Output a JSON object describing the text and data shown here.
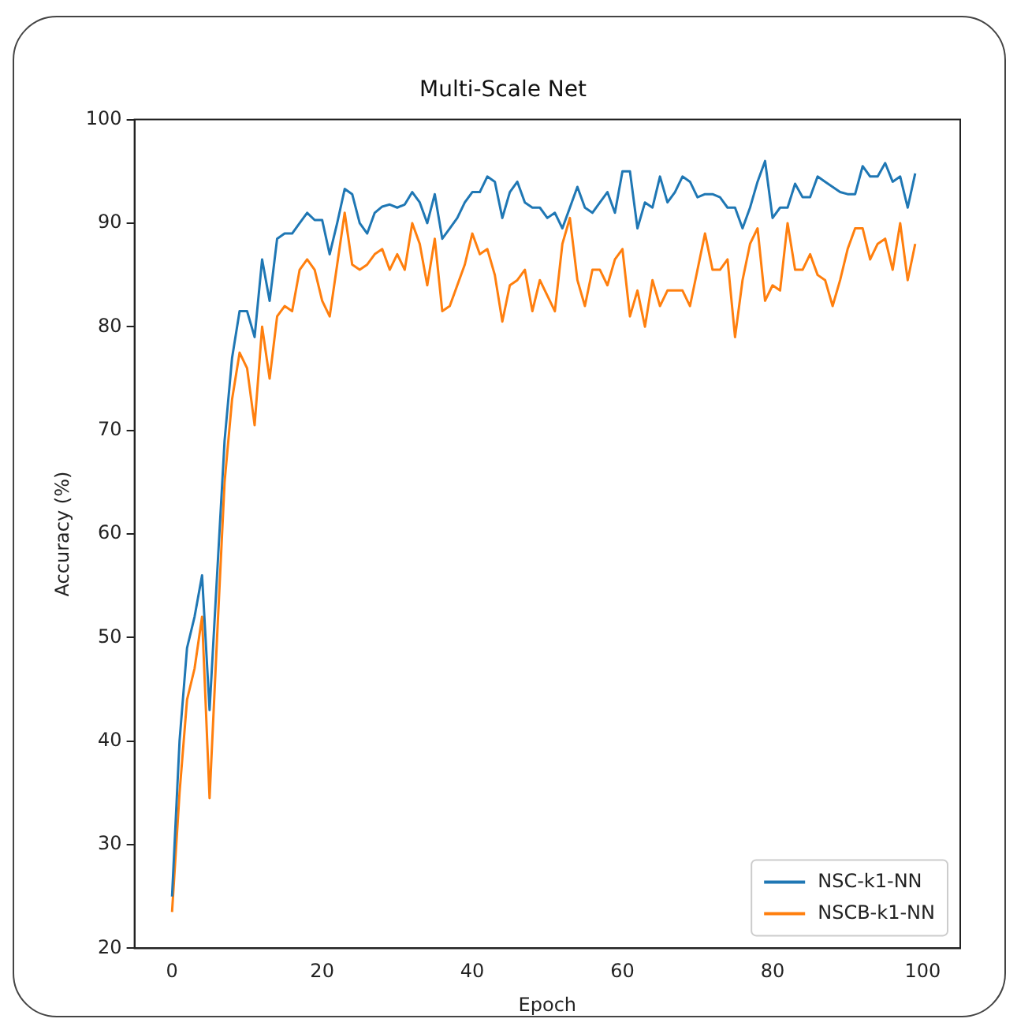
{
  "chart_data": {
    "type": "line",
    "title": "Multi-Scale Net",
    "xlabel": "Epoch",
    "ylabel": "Accuracy (%)",
    "x": [
      0,
      1,
      2,
      3,
      4,
      5,
      6,
      7,
      8,
      9,
      10,
      11,
      12,
      13,
      14,
      15,
      16,
      17,
      18,
      19,
      20,
      21,
      22,
      23,
      24,
      25,
      26,
      27,
      28,
      29,
      30,
      31,
      32,
      33,
      34,
      35,
      36,
      37,
      38,
      39,
      40,
      41,
      42,
      43,
      44,
      45,
      46,
      47,
      48,
      49,
      50,
      51,
      52,
      53,
      54,
      55,
      56,
      57,
      58,
      59,
      60,
      61,
      62,
      63,
      64,
      65,
      66,
      67,
      68,
      69,
      70,
      71,
      72,
      73,
      74,
      75,
      76,
      77,
      78,
      79,
      80,
      81,
      82,
      83,
      84,
      85,
      86,
      87,
      88,
      89,
      90,
      91,
      92,
      93,
      94,
      95,
      96,
      97,
      98,
      99
    ],
    "series": [
      {
        "name": "NSC-k1-NN",
        "color": "#1f77b4",
        "values": [
          25,
          40,
          49,
          52,
          56,
          43,
          56,
          69,
          77,
          81.5,
          81.5,
          79,
          86.5,
          82.5,
          88.5,
          89,
          89,
          90,
          91,
          90.3,
          90.3,
          87,
          90,
          93.3,
          92.8,
          90,
          89,
          91,
          91.6,
          91.8,
          91.5,
          91.8,
          93,
          92,
          90,
          92.8,
          88.5,
          89.5,
          90.5,
          92,
          93,
          93,
          94.5,
          94,
          90.5,
          93,
          94,
          92,
          91.5,
          91.5,
          90.5,
          91,
          89.5,
          91.5,
          93.5,
          91.5,
          91,
          92,
          93,
          91,
          95,
          95,
          89.5,
          92,
          91.5,
          94.5,
          92,
          93,
          94.5,
          94,
          92.5,
          92.8,
          92.8,
          92.5,
          91.5,
          91.5,
          89.5,
          91.5,
          94,
          96,
          90.5,
          91.5,
          91.5,
          93.8,
          92.5,
          92.5,
          94.5,
          94,
          93.5,
          93,
          92.8,
          92.8,
          95.5,
          94.5,
          94.5,
          95.8,
          94,
          94.5,
          91.5,
          94.8
        ]
      },
      {
        "name": "NSCB-k1-NN",
        "color": "#ff7f0e",
        "values": [
          23.5,
          35,
          44,
          47,
          52,
          34.5,
          50,
          65,
          73,
          77.5,
          76,
          70.5,
          80,
          75,
          81,
          82,
          81.5,
          85.5,
          86.5,
          85.5,
          82.5,
          81,
          86,
          91,
          86,
          85.5,
          86,
          87,
          87.5,
          85.5,
          87,
          85.5,
          90,
          88,
          84,
          88.5,
          81.5,
          82,
          84,
          86,
          89,
          87,
          87.5,
          85,
          80.5,
          84,
          84.5,
          85.5,
          81.5,
          84.5,
          83,
          81.5,
          88,
          90.5,
          84.5,
          82,
          85.5,
          85.5,
          84,
          86.5,
          87.5,
          81,
          83.5,
          80,
          84.5,
          82,
          83.5,
          83.5,
          83.5,
          82,
          85.5,
          89,
          85.5,
          85.5,
          86.5,
          79,
          84.5,
          88,
          89.5,
          82.5,
          84,
          83.5,
          90,
          85.5,
          85.5,
          87,
          85,
          84.5,
          82,
          84.5,
          87.5,
          89.5,
          89.5,
          86.5,
          88,
          88.5,
          85.5,
          90,
          84.5,
          88
        ]
      }
    ],
    "xlim": [
      -5,
      105
    ],
    "xticks": [
      0,
      20,
      40,
      60,
      80,
      100
    ],
    "ylim": [
      20,
      100
    ],
    "yticks": [
      20,
      30,
      40,
      50,
      60,
      70,
      80,
      90,
      100
    ],
    "legend": "bottom right",
    "grid": false,
    "marker": "none",
    "line_style": "solid"
  }
}
